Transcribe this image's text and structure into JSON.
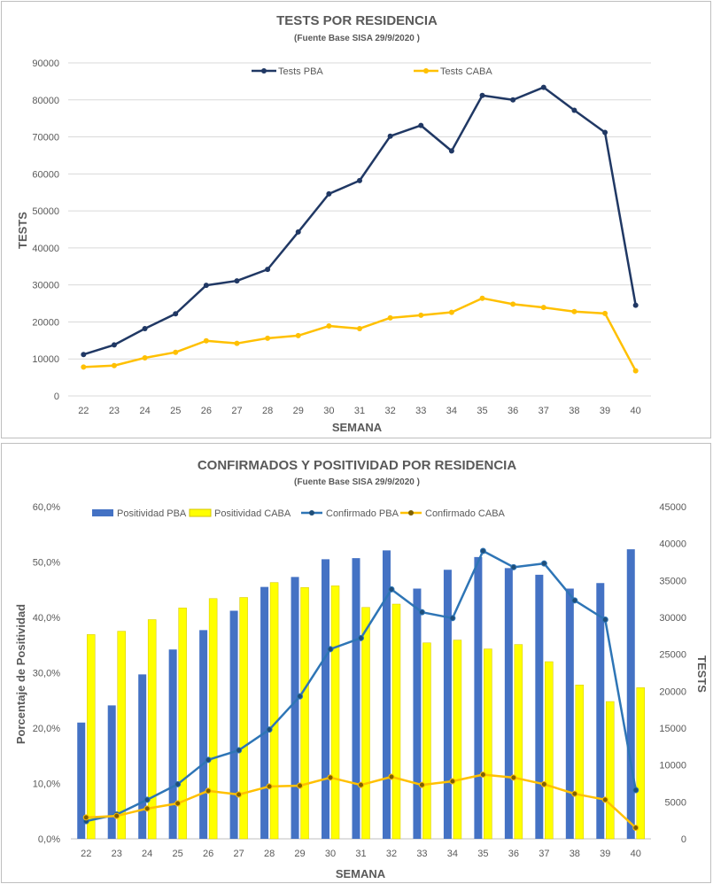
{
  "chart_data": [
    {
      "type": "line",
      "title": "TESTS POR RESIDENCIA",
      "subtitle": "(Fuente Base SISA  29/9/2020 )",
      "xlabel": "SEMANA",
      "ylabel": "TESTS",
      "ylim": [
        0,
        90000
      ],
      "yticks": [
        "0",
        "10000",
        "20000",
        "30000",
        "40000",
        "50000",
        "60000",
        "70000",
        "80000",
        "90000"
      ],
      "grid": true,
      "legend": "top",
      "categories": [
        "22",
        "23",
        "24",
        "25",
        "26",
        "27",
        "28",
        "29",
        "30",
        "31",
        "32",
        "33",
        "34",
        "35",
        "36",
        "37",
        "38",
        "39",
        "40"
      ],
      "series": [
        {
          "name": "Tests PBA",
          "color": "#203864",
          "values": [
            11200,
            13800,
            18200,
            22200,
            29900,
            31100,
            34200,
            44300,
            54600,
            58200,
            70200,
            73100,
            66200,
            81200,
            80000,
            83400,
            77200,
            71200,
            24500
          ]
        },
        {
          "name": "Tests CABA",
          "color": "#FFC000",
          "values": [
            7800,
            8200,
            10300,
            11800,
            14900,
            14200,
            15600,
            16300,
            18900,
            18200,
            21100,
            21800,
            22600,
            26400,
            24800,
            23900,
            22800,
            22300,
            6800
          ]
        }
      ]
    },
    {
      "type": "bar",
      "title": "CONFIRMADOS Y POSITIVIDAD POR RESIDENCIA",
      "subtitle": "(Fuente Base SISA  29/9/2020 )",
      "xlabel": "SEMANA",
      "ylabel": "Porcentaje de Positividad",
      "y2label": "TESTS",
      "ylim": [
        0,
        60
      ],
      "y2lim": [
        0,
        45000
      ],
      "yticks": [
        "0,0%",
        "10,0%",
        "20,0%",
        "30,0%",
        "40,0%",
        "50,0%",
        "60,0%"
      ],
      "y2ticks": [
        "0",
        "5000",
        "10000",
        "15000",
        "20000",
        "25000",
        "30000",
        "35000",
        "40000",
        "45000"
      ],
      "grid": false,
      "legend": "top",
      "categories": [
        "22",
        "23",
        "24",
        "25",
        "26",
        "27",
        "28",
        "29",
        "30",
        "31",
        "32",
        "33",
        "34",
        "35",
        "36",
        "37",
        "38",
        "39",
        "40"
      ],
      "bar_series": [
        {
          "name": "Positividad PBA",
          "color": "#4472C4",
          "values": [
            21.0,
            24.1,
            29.7,
            34.2,
            37.7,
            41.2,
            45.5,
            47.3,
            50.5,
            50.7,
            52.1,
            45.2,
            48.6,
            50.9,
            48.9,
            47.7,
            45.2,
            46.2,
            52.3
          ]
        },
        {
          "name": "Positividad CABA",
          "color": "#FFFF00",
          "values": [
            36.9,
            37.5,
            39.6,
            41.7,
            43.4,
            43.6,
            46.3,
            45.4,
            45.7,
            41.8,
            42.4,
            35.4,
            35.9,
            34.3,
            35.1,
            32.0,
            27.8,
            24.8,
            27.3
          ]
        }
      ],
      "line_series": [
        {
          "name": "Confirmado PBA",
          "color": "#2E75B6",
          "values": [
            2400,
            3300,
            5300,
            7400,
            10700,
            12000,
            14800,
            19300,
            25700,
            27200,
            33800,
            30700,
            29900,
            39000,
            36800,
            37300,
            32300,
            29700,
            6600
          ]
        },
        {
          "name": "Confirmado CABA",
          "color": "#FFC000",
          "values": [
            2900,
            3100,
            4100,
            4800,
            6500,
            6000,
            7100,
            7200,
            8300,
            7300,
            8400,
            7300,
            7800,
            8700,
            8300,
            7400,
            6100,
            5300,
            1500
          ]
        }
      ]
    }
  ]
}
